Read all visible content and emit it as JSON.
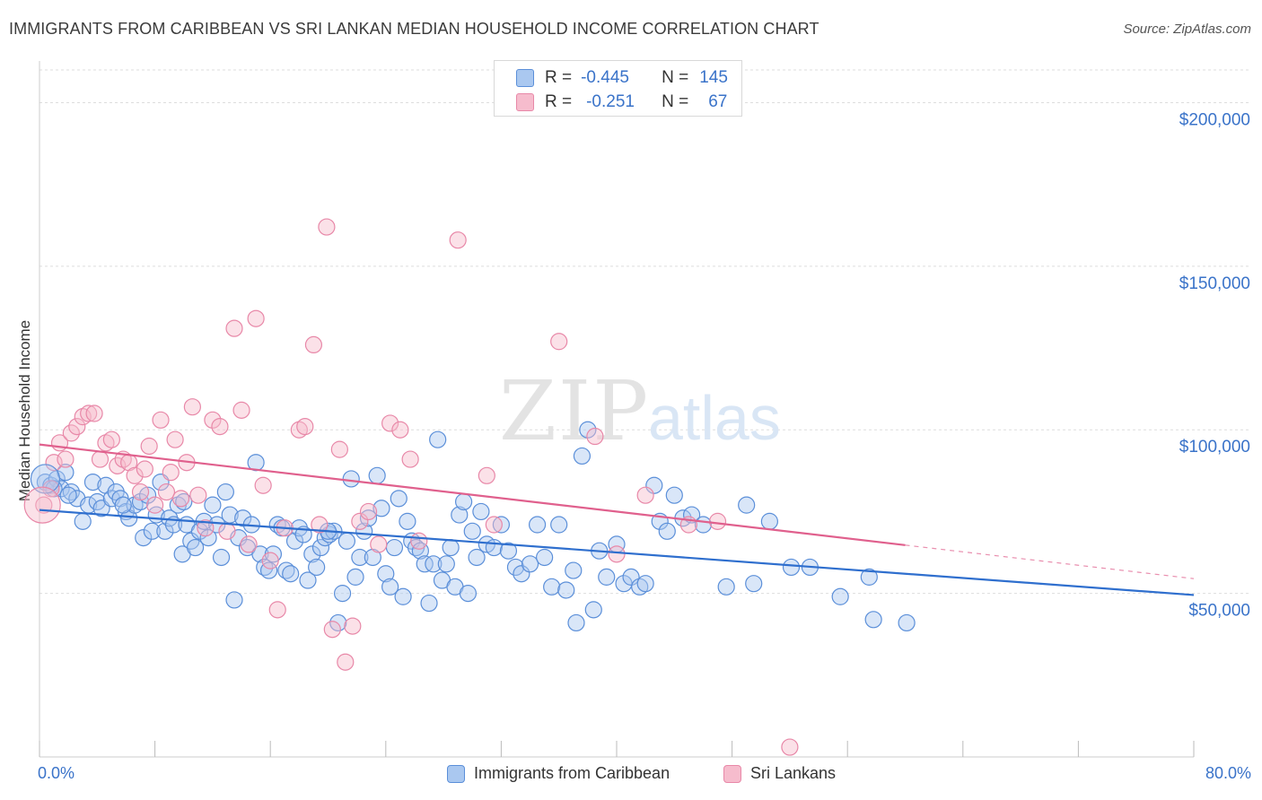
{
  "title": "IMMIGRANTS FROM CARIBBEAN VS SRI LANKAN MEDIAN HOUSEHOLD INCOME CORRELATION CHART",
  "source": "Source: ZipAtlas.com",
  "watermark": {
    "zip": "ZIP",
    "atlas": "atlas"
  },
  "colors": {
    "blue_fill": "#aac8f0",
    "blue_stroke": "#5b8fd9",
    "blue_line": "#2f6fce",
    "pink_fill": "#f6bccd",
    "pink_stroke": "#e888a8",
    "pink_line": "#e0608d",
    "axis_text": "#3a73c9",
    "grid": "#dddddd"
  },
  "stats": {
    "rows": [
      {
        "r_label": "R =",
        "r_value": "-0.445",
        "n_label": "N =",
        "n_value": "145"
      },
      {
        "r_label": "R =",
        "r_value": "-0.251",
        "n_label": "N =",
        "n_value": "67"
      }
    ]
  },
  "legend": {
    "items": [
      {
        "label": "Immigrants from Caribbean"
      },
      {
        "label": "Sri Lankans"
      }
    ]
  },
  "x_axis": {
    "min_label": "0.0%",
    "max_label": "80.0%"
  },
  "chart_data": {
    "type": "scatter",
    "title": "IMMIGRANTS FROM CARIBBEAN VS SRI LANKAN MEDIAN HOUSEHOLD INCOME CORRELATION CHART",
    "xlabel": "",
    "ylabel": "Median Household Income",
    "xlim": [
      0,
      80
    ],
    "ylim": [
      0,
      210000
    ],
    "y_ticks": [
      {
        "value": 50000,
        "label": "$50,000"
      },
      {
        "value": 100000,
        "label": "$100,000"
      },
      {
        "value": 150000,
        "label": "$150,000"
      },
      {
        "value": 200000,
        "label": "$200,000"
      }
    ],
    "x_tick_values": [
      0,
      8,
      16,
      24,
      32,
      40,
      48,
      56,
      64,
      72,
      80
    ],
    "grid": true,
    "legend_position": "bottom",
    "series": [
      {
        "name": "Immigrants from Caribbean",
        "r": -0.445,
        "n": 145,
        "trend": {
          "x": [
            0,
            80
          ],
          "y": [
            75500,
            49500
          ],
          "dashed_from": null
        },
        "points": [
          [
            0.4,
            84000
          ],
          [
            0.8,
            83000
          ],
          [
            1.2,
            85000
          ],
          [
            1.5,
            82000
          ],
          [
            1.8,
            87000
          ],
          [
            2.2,
            81000
          ],
          [
            2.6,
            79000
          ],
          [
            3.0,
            72000
          ],
          [
            3.4,
            77000
          ],
          [
            3.7,
            84000
          ],
          [
            4.0,
            78000
          ],
          [
            4.3,
            76000
          ],
          [
            4.6,
            83000
          ],
          [
            5.0,
            79000
          ],
          [
            5.3,
            81000
          ],
          [
            5.6,
            79000
          ],
          [
            6.0,
            75000
          ],
          [
            6.2,
            73000
          ],
          [
            6.6,
            77000
          ],
          [
            7.0,
            78000
          ],
          [
            7.2,
            67000
          ],
          [
            7.5,
            80000
          ],
          [
            7.8,
            69000
          ],
          [
            8.1,
            74000
          ],
          [
            8.4,
            84000
          ],
          [
            8.7,
            69000
          ],
          [
            9.0,
            73000
          ],
          [
            9.3,
            71000
          ],
          [
            9.6,
            77000
          ],
          [
            9.9,
            62000
          ],
          [
            10.2,
            71000
          ],
          [
            10.5,
            66000
          ],
          [
            10.8,
            64000
          ],
          [
            11.1,
            69000
          ],
          [
            11.4,
            72000
          ],
          [
            11.7,
            67000
          ],
          [
            12.0,
            77000
          ],
          [
            12.3,
            71000
          ],
          [
            12.6,
            61000
          ],
          [
            12.9,
            81000
          ],
          [
            13.2,
            74000
          ],
          [
            13.5,
            48000
          ],
          [
            13.8,
            67000
          ],
          [
            14.1,
            73000
          ],
          [
            14.4,
            64000
          ],
          [
            14.7,
            71000
          ],
          [
            15.0,
            90000
          ],
          [
            15.3,
            62000
          ],
          [
            15.6,
            58000
          ],
          [
            15.9,
            57000
          ],
          [
            16.2,
            62000
          ],
          [
            16.5,
            71000
          ],
          [
            16.8,
            70000
          ],
          [
            17.1,
            57000
          ],
          [
            17.4,
            56000
          ],
          [
            17.7,
            66000
          ],
          [
            18.0,
            70000
          ],
          [
            18.3,
            68000
          ],
          [
            18.6,
            54000
          ],
          [
            18.9,
            62000
          ],
          [
            19.2,
            58000
          ],
          [
            19.5,
            64000
          ],
          [
            19.8,
            67000
          ],
          [
            20.1,
            68000
          ],
          [
            20.4,
            69000
          ],
          [
            20.7,
            41000
          ],
          [
            21.0,
            50000
          ],
          [
            21.3,
            66000
          ],
          [
            21.6,
            85000
          ],
          [
            21.9,
            55000
          ],
          [
            22.2,
            61000
          ],
          [
            22.5,
            69000
          ],
          [
            22.8,
            73000
          ],
          [
            23.1,
            61000
          ],
          [
            23.4,
            86000
          ],
          [
            23.7,
            76000
          ],
          [
            24.0,
            56000
          ],
          [
            24.3,
            52000
          ],
          [
            24.6,
            64000
          ],
          [
            24.9,
            79000
          ],
          [
            25.2,
            49000
          ],
          [
            25.5,
            72000
          ],
          [
            25.8,
            66000
          ],
          [
            26.1,
            64000
          ],
          [
            26.4,
            63000
          ],
          [
            26.7,
            59000
          ],
          [
            27.0,
            47000
          ],
          [
            27.3,
            59000
          ],
          [
            27.6,
            97000
          ],
          [
            27.9,
            54000
          ],
          [
            28.2,
            59000
          ],
          [
            28.5,
            64000
          ],
          [
            28.8,
            52000
          ],
          [
            29.1,
            74000
          ],
          [
            29.4,
            78000
          ],
          [
            29.7,
            50000
          ],
          [
            30.0,
            69000
          ],
          [
            30.3,
            61000
          ],
          [
            30.6,
            75000
          ],
          [
            31.0,
            65000
          ],
          [
            31.5,
            64000
          ],
          [
            32.0,
            71000
          ],
          [
            32.5,
            63000
          ],
          [
            33.0,
            58000
          ],
          [
            33.4,
            56000
          ],
          [
            34.0,
            59000
          ],
          [
            34.5,
            71000
          ],
          [
            35.0,
            61000
          ],
          [
            35.5,
            52000
          ],
          [
            36.0,
            71000
          ],
          [
            36.5,
            51000
          ],
          [
            37.0,
            57000
          ],
          [
            37.2,
            41000
          ],
          [
            37.6,
            92000
          ],
          [
            38.0,
            100000
          ],
          [
            38.4,
            45000
          ],
          [
            38.8,
            63000
          ],
          [
            39.3,
            55000
          ],
          [
            40.0,
            65000
          ],
          [
            40.5,
            53000
          ],
          [
            41.0,
            55000
          ],
          [
            41.6,
            52000
          ],
          [
            42.0,
            53000
          ],
          [
            42.6,
            83000
          ],
          [
            43.0,
            72000
          ],
          [
            43.5,
            69000
          ],
          [
            44.0,
            80000
          ],
          [
            44.6,
            73000
          ],
          [
            45.2,
            74000
          ],
          [
            46.0,
            71000
          ],
          [
            47.6,
            52000
          ],
          [
            49.0,
            77000
          ],
          [
            49.5,
            53000
          ],
          [
            50.6,
            72000
          ],
          [
            52.1,
            58000
          ],
          [
            53.4,
            58000
          ],
          [
            55.5,
            49000
          ],
          [
            57.5,
            55000
          ],
          [
            57.8,
            42000
          ],
          [
            60.1,
            41000
          ],
          [
            1.0,
            82000
          ],
          [
            2.0,
            80000
          ],
          [
            5.8,
            77000
          ],
          [
            10.0,
            78000
          ],
          [
            20.0,
            69000
          ]
        ]
      },
      {
        "name": "Sri Lankans",
        "r": -0.251,
        "n": 67,
        "trend": {
          "x": [
            0,
            80
          ],
          "y": [
            95500,
            54500
          ],
          "dashed_from": 60
        },
        "points": [
          [
            0.3,
            77000
          ],
          [
            0.8,
            82000
          ],
          [
            1.0,
            90000
          ],
          [
            1.4,
            96000
          ],
          [
            1.8,
            91000
          ],
          [
            2.2,
            99000
          ],
          [
            2.6,
            101000
          ],
          [
            3.0,
            104000
          ],
          [
            3.4,
            105000
          ],
          [
            3.8,
            105000
          ],
          [
            4.2,
            91000
          ],
          [
            4.6,
            96000
          ],
          [
            5.0,
            97000
          ],
          [
            5.4,
            89000
          ],
          [
            5.8,
            91000
          ],
          [
            6.2,
            90000
          ],
          [
            6.6,
            86000
          ],
          [
            7.0,
            81000
          ],
          [
            7.3,
            88000
          ],
          [
            7.6,
            95000
          ],
          [
            8.0,
            77000
          ],
          [
            8.4,
            103000
          ],
          [
            8.8,
            81000
          ],
          [
            9.1,
            87000
          ],
          [
            9.4,
            97000
          ],
          [
            9.8,
            79000
          ],
          [
            10.2,
            90000
          ],
          [
            10.6,
            107000
          ],
          [
            11.0,
            80000
          ],
          [
            11.5,
            70000
          ],
          [
            12.0,
            103000
          ],
          [
            12.5,
            101000
          ],
          [
            13.0,
            69000
          ],
          [
            13.5,
            131000
          ],
          [
            14.0,
            106000
          ],
          [
            14.5,
            65000
          ],
          [
            15.0,
            134000
          ],
          [
            15.5,
            83000
          ],
          [
            16.0,
            60000
          ],
          [
            16.5,
            45000
          ],
          [
            17.0,
            70000
          ],
          [
            18.0,
            100000
          ],
          [
            18.4,
            101000
          ],
          [
            19.0,
            126000
          ],
          [
            19.4,
            71000
          ],
          [
            19.9,
            162000
          ],
          [
            20.3,
            39000
          ],
          [
            20.8,
            94000
          ],
          [
            21.2,
            29000
          ],
          [
            21.7,
            40000
          ],
          [
            22.2,
            72000
          ],
          [
            22.8,
            75000
          ],
          [
            23.5,
            65000
          ],
          [
            24.3,
            102000
          ],
          [
            25.0,
            100000
          ],
          [
            25.7,
            91000
          ],
          [
            26.3,
            66000
          ],
          [
            29.0,
            158000
          ],
          [
            31.0,
            86000
          ],
          [
            31.5,
            71000
          ],
          [
            36.0,
            127000
          ],
          [
            38.5,
            98000
          ],
          [
            40.0,
            62000
          ],
          [
            42.0,
            80000
          ],
          [
            45.0,
            71000
          ],
          [
            47.0,
            72000
          ],
          [
            52.0,
            3000
          ]
        ]
      }
    ]
  }
}
